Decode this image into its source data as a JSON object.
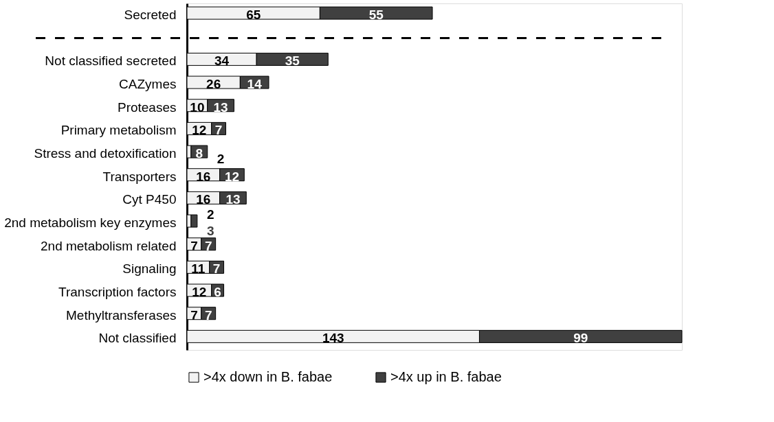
{
  "chart_data": {
    "type": "bar",
    "orientation": "horizontal",
    "stacked": true,
    "data_labels": true,
    "legend": "bottom",
    "categories": [
      "Secreted",
      null,
      "Not classified secreted",
      "CAZymes",
      "Proteases",
      "Primary metabolism",
      "Stress and detoxification",
      "Transporters",
      "Cyt P450",
      "2nd metabolism key enzymes",
      "2nd metabolism related",
      "Signaling",
      "Transcription factors",
      "Methyltransferases",
      "Not classified"
    ],
    "series": [
      {
        "name": ">4x down in B. fabae",
        "color": "#f2f2f2",
        "values": [
          65,
          null,
          34,
          26,
          10,
          12,
          2,
          16,
          16,
          2,
          7,
          11,
          12,
          7,
          143
        ]
      },
      {
        "name": ">4x up in B. fabae",
        "color": "#404040",
        "values": [
          55,
          null,
          35,
          14,
          13,
          7,
          8,
          12,
          13,
          3,
          7,
          7,
          6,
          7,
          99
        ]
      }
    ],
    "ref_lines": [
      {
        "axis": "y",
        "value": null,
        "line_style": "dashed",
        "color": "#000000"
      }
    ]
  }
}
